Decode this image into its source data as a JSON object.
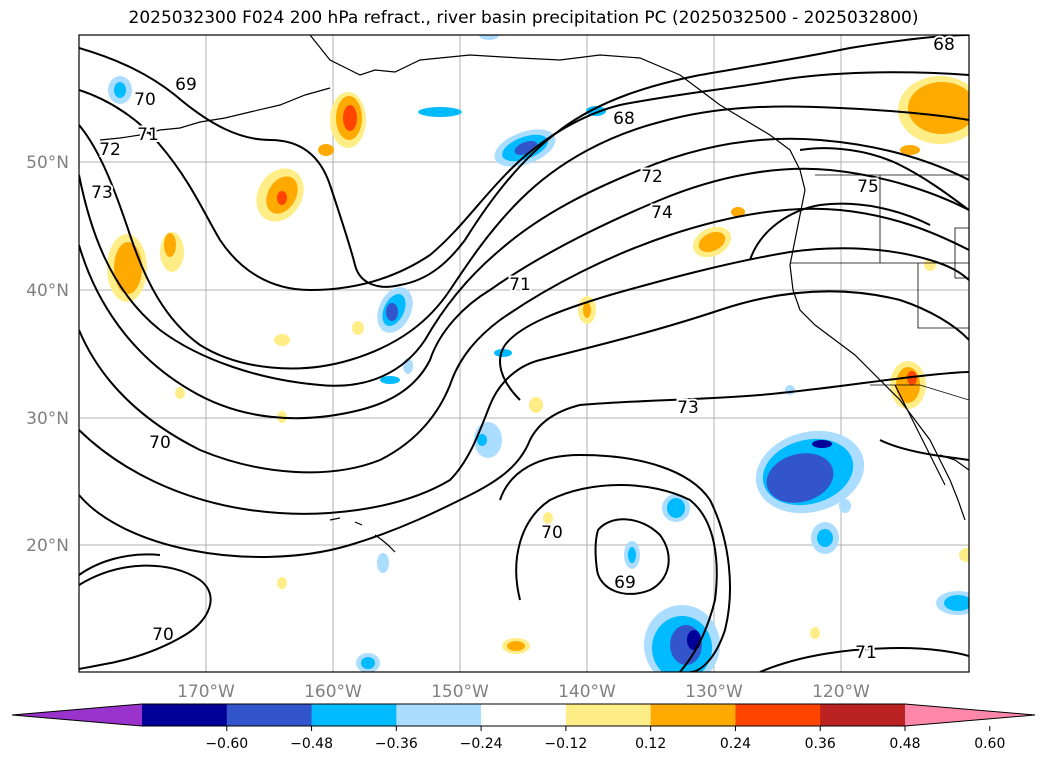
{
  "title": "2025032300 F024 200 hPa refract., river basin precipitation PC (2025032500 - 2025032800)",
  "map": {
    "lat_labels": [
      "50°N",
      "40°N",
      "30°N",
      "20°N"
    ],
    "lon_labels": [
      "170°W",
      "160°W",
      "150°W",
      "140°W",
      "130°W",
      "120°W"
    ],
    "grid": true,
    "contour_labels": [
      "68",
      "69",
      "70",
      "71",
      "72",
      "73",
      "74",
      "75",
      "70",
      "69",
      "70",
      "71",
      "73",
      "71",
      "70",
      "68",
      "72"
    ]
  },
  "colorbar": {
    "ticks": [
      "−0.60",
      "−0.48",
      "−0.36",
      "−0.24",
      "−0.12",
      "0.12",
      "0.24",
      "0.36",
      "0.48",
      "0.60"
    ],
    "colors": [
      "#9933cc",
      "#000099",
      "#3355cc",
      "#00bbff",
      "#aaddff",
      "#ffffff",
      "#ffee88",
      "#ffaa00",
      "#ff4400",
      "#bb2222",
      "#ff88aa"
    ],
    "extend": "both"
  }
}
